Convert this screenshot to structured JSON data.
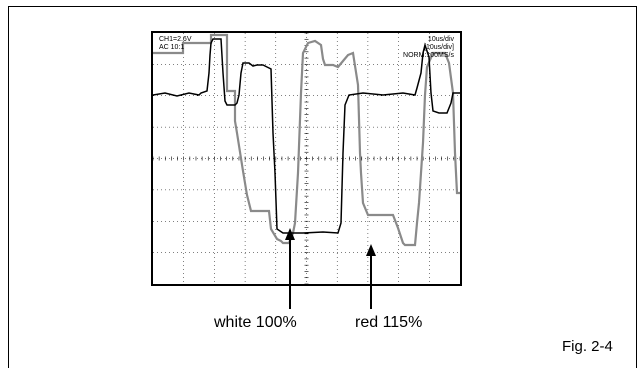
{
  "scope_readout": {
    "left": [
      "CH1=2.6V",
      "AC 10:1"
    ],
    "right": [
      "10us/div",
      "[10us/div]",
      "NORM:100MS/s"
    ]
  },
  "annotations": {
    "white": "white 100%",
    "red": "red 115%"
  },
  "figure_label": "Fig. 2-4"
}
